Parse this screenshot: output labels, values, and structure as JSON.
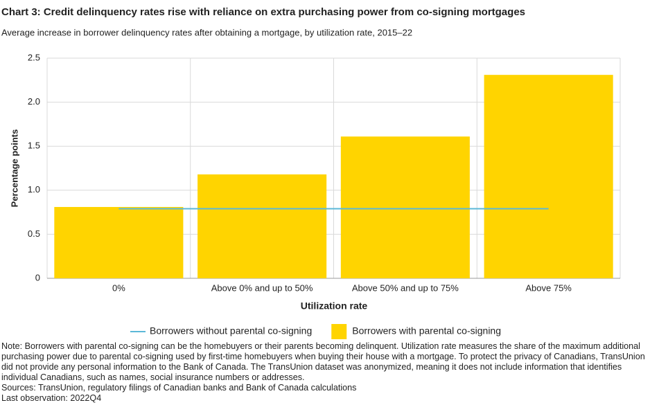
{
  "chart_data": {
    "type": "bar",
    "title": "Chart 3: Credit delinquency rates rise with reliance on extra purchasing power from co-signing mortgages",
    "subtitle": "Average increase in borrower delinquency rates after obtaining a mortgage, by utilization rate, 2015–22",
    "y_label": "Percentage points",
    "x_label": "Utilization rate",
    "categories": [
      "0%",
      "Above 0% and up to 50%",
      "Above 50% and up to 75%",
      "Above 75%"
    ],
    "series": [
      {
        "name": "Borrowers without parental co-signing",
        "type": "line",
        "color": "#5bb8d8",
        "values": [
          0.79,
          0.79,
          0.79,
          0.79
        ]
      },
      {
        "name": "Borrowers with parental co-signing",
        "type": "bar",
        "color": "#ffd400",
        "values": [
          0.81,
          1.18,
          1.61,
          2.31
        ]
      }
    ],
    "ylim": [
      0,
      2.5
    ],
    "yticks": [
      0,
      0.5,
      {
        "value": 1,
        "label": "1.0"
      },
      1.5,
      {
        "value": 2,
        "label": "2.0"
      },
      2.5
    ],
    "grid": true,
    "legend": "bottom",
    "note": "Note: Borrowers with parental co-signing can be the homebuyers or their parents becoming delinquent. Utilization rate measures the share of the maximum additional purchasing power due to parental co-signing used by first-time homebuyers when buying their house with a mortgage. To protect the privacy of Canadians, TransUnion did not provide any personal information to the Bank of Canada. The TransUnion dataset was anonymized, meaning it does not include information that identifies individual Canadians, such as names, social insurance numbers or addresses.",
    "sources": "Sources: TransUnion, regulatory filings of Canadian banks and Bank of Canada calculations",
    "last_observation": "Last observation: 2022Q4"
  }
}
